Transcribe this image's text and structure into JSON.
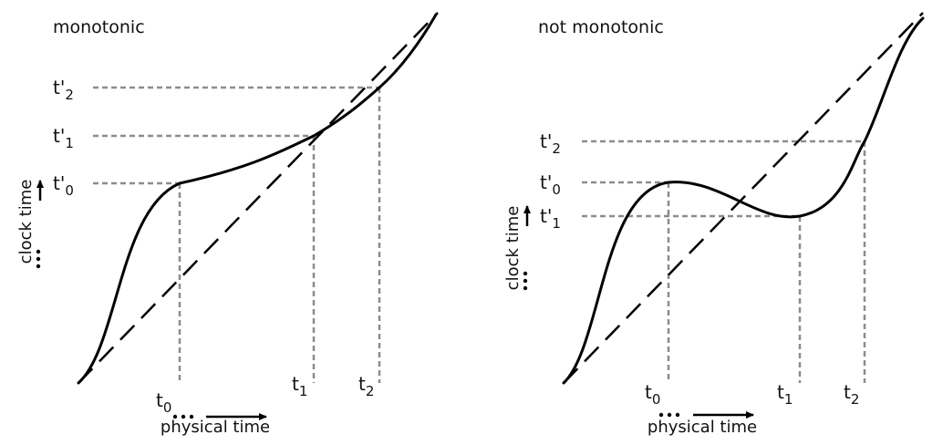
{
  "panels": [
    {
      "title": "monotonic",
      "ylabels": [
        {
          "main": "t'",
          "sub": "2"
        },
        {
          "main": "t'",
          "sub": "1"
        },
        {
          "main": "t'",
          "sub": "0"
        }
      ],
      "xlabels": [
        {
          "main": "t",
          "sub": "0"
        },
        {
          "main": "t",
          "sub": "1"
        },
        {
          "main": "t",
          "sub": "2"
        }
      ],
      "yaxis": "clock time",
      "xaxis": "physical time"
    },
    {
      "title": "not monotonic",
      "ylabels": [
        {
          "main": "t'",
          "sub": "2"
        },
        {
          "main": "t'",
          "sub": "0"
        },
        {
          "main": "t'",
          "sub": "1"
        }
      ],
      "xlabels": [
        {
          "main": "t",
          "sub": "0"
        },
        {
          "main": "t",
          "sub": "1"
        },
        {
          "main": "t",
          "sub": "2"
        }
      ],
      "yaxis": "clock time",
      "xaxis": "physical time"
    }
  ]
}
